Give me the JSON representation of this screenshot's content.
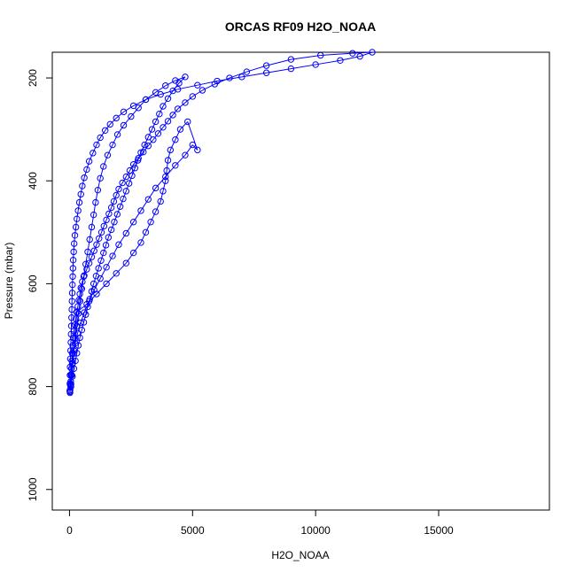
{
  "chart_data": {
    "type": "scatter",
    "title": "ORCAS RF09 H2O_NOAA",
    "xlabel": "H2O_NOAA",
    "ylabel": "Pressure (mbar)",
    "xlim": [
      -700,
      19500
    ],
    "ylim": [
      1040,
      150
    ],
    "y_reversed": true,
    "x_ticks": [
      0,
      5000,
      10000,
      15000
    ],
    "y_ticks": [
      200,
      400,
      600,
      800,
      1000
    ],
    "x_tick_labels": [
      "0",
      "5000",
      "10000",
      "15000"
    ],
    "y_tick_labels": [
      "200",
      "400",
      "600",
      "800",
      "1000"
    ],
    "grid": false,
    "colors": {
      "series": "#0000ff",
      "axis": "#000000",
      "background": "#ffffff"
    },
    "series": [
      {
        "marker": "open-circle",
        "connected": true,
        "points": [
          [
            20,
            812
          ],
          [
            25,
            806
          ],
          [
            35,
            798
          ],
          [
            50,
            790
          ],
          [
            65,
            778
          ],
          [
            80,
            765
          ],
          [
            95,
            750
          ],
          [
            110,
            735
          ],
          [
            130,
            720
          ],
          [
            150,
            705
          ],
          [
            180,
            692
          ],
          [
            220,
            680
          ],
          [
            260,
            668
          ],
          [
            300,
            656
          ],
          [
            340,
            644
          ],
          [
            380,
            632
          ],
          [
            420,
            620
          ],
          [
            460,
            608
          ],
          [
            520,
            596
          ],
          [
            600,
            584
          ],
          [
            700,
            572
          ],
          [
            800,
            560
          ],
          [
            900,
            548
          ],
          [
            1000,
            536
          ],
          [
            1100,
            524
          ],
          [
            1200,
            512
          ],
          [
            1300,
            500
          ],
          [
            1400,
            488
          ],
          [
            1500,
            476
          ],
          [
            1600,
            464
          ],
          [
            1700,
            452
          ],
          [
            1800,
            440
          ],
          [
            1900,
            428
          ],
          [
            2000,
            416
          ],
          [
            2150,
            404
          ],
          [
            2300,
            392
          ],
          [
            2450,
            380
          ],
          [
            2600,
            368
          ],
          [
            2800,
            356
          ],
          [
            3000,
            344
          ],
          [
            3200,
            332
          ],
          [
            3400,
            320
          ],
          [
            3600,
            308
          ],
          [
            3800,
            296
          ],
          [
            4000,
            284
          ],
          [
            4200,
            272
          ],
          [
            4400,
            260
          ],
          [
            4700,
            248
          ],
          [
            5000,
            236
          ],
          [
            5400,
            224
          ],
          [
            5900,
            212
          ],
          [
            6500,
            200
          ],
          [
            7200,
            188
          ],
          [
            8000,
            176
          ],
          [
            9000,
            164
          ],
          [
            10200,
            156
          ],
          [
            11500,
            152
          ],
          [
            12300,
            150
          ],
          [
            11800,
            158
          ],
          [
            11000,
            166
          ],
          [
            10000,
            174
          ],
          [
            9000,
            182
          ],
          [
            8000,
            190
          ],
          [
            7000,
            198
          ],
          [
            6000,
            206
          ],
          [
            5200,
            214
          ],
          [
            4400,
            222
          ],
          [
            3700,
            232
          ],
          [
            3100,
            242
          ],
          [
            2600,
            254
          ],
          [
            2200,
            266
          ],
          [
            1900,
            278
          ],
          [
            1650,
            290
          ],
          [
            1450,
            302
          ],
          [
            1250,
            316
          ],
          [
            1100,
            330
          ],
          [
            950,
            346
          ],
          [
            800,
            362
          ],
          [
            700,
            378
          ],
          [
            600,
            394
          ],
          [
            520,
            410
          ],
          [
            460,
            426
          ],
          [
            400,
            442
          ],
          [
            350,
            458
          ],
          [
            300,
            474
          ],
          [
            260,
            490
          ],
          [
            220,
            506
          ],
          [
            190,
            522
          ],
          [
            170,
            538
          ],
          [
            150,
            554
          ],
          [
            140,
            570
          ],
          [
            130,
            586
          ],
          [
            120,
            602
          ],
          [
            110,
            618
          ],
          [
            100,
            634
          ],
          [
            95,
            650
          ],
          [
            85,
            666
          ],
          [
            75,
            682
          ],
          [
            65,
            698
          ],
          [
            55,
            714
          ],
          [
            45,
            730
          ],
          [
            35,
            746
          ],
          [
            25,
            762
          ],
          [
            20,
            778
          ],
          [
            15,
            794
          ],
          [
            12,
            808
          ],
          [
            60,
            795
          ],
          [
            120,
            780
          ],
          [
            180,
            765
          ],
          [
            240,
            750
          ],
          [
            300,
            735
          ],
          [
            360,
            720
          ],
          [
            420,
            705
          ],
          [
            500,
            690
          ],
          [
            580,
            675
          ],
          [
            660,
            660
          ],
          [
            740,
            645
          ],
          [
            820,
            630
          ],
          [
            900,
            615
          ],
          [
            980,
            600
          ],
          [
            1080,
            585
          ],
          [
            1180,
            570
          ],
          [
            1280,
            555
          ],
          [
            1380,
            540
          ],
          [
            1480,
            525
          ],
          [
            1580,
            510
          ],
          [
            1700,
            495
          ],
          [
            1820,
            480
          ],
          [
            1940,
            465
          ],
          [
            2060,
            450
          ],
          [
            2180,
            435
          ],
          [
            2300,
            420
          ],
          [
            2420,
            405
          ],
          [
            2540,
            390
          ],
          [
            2660,
            375
          ],
          [
            2780,
            360
          ],
          [
            2900,
            345
          ],
          [
            3050,
            330
          ],
          [
            3200,
            315
          ],
          [
            3350,
            300
          ],
          [
            3500,
            285
          ],
          [
            3650,
            270
          ],
          [
            3800,
            255
          ],
          [
            4000,
            240
          ],
          [
            4200,
            225
          ],
          [
            4450,
            210
          ],
          [
            4700,
            198
          ],
          [
            4300,
            205
          ],
          [
            3900,
            215
          ],
          [
            3500,
            228
          ],
          [
            3100,
            242
          ],
          [
            2800,
            258
          ],
          [
            2500,
            275
          ],
          [
            2200,
            292
          ],
          [
            1950,
            310
          ],
          [
            1750,
            330
          ],
          [
            1550,
            350
          ],
          [
            1380,
            372
          ],
          [
            1250,
            395
          ],
          [
            1150,
            418
          ],
          [
            1060,
            442
          ],
          [
            980,
            466
          ],
          [
            900,
            490
          ],
          [
            820,
            514
          ],
          [
            740,
            538
          ],
          [
            660,
            562
          ],
          [
            580,
            586
          ],
          [
            500,
            610
          ],
          [
            430,
            634
          ],
          [
            360,
            658
          ],
          [
            300,
            682
          ],
          [
            240,
            706
          ],
          [
            180,
            730
          ],
          [
            130,
            754
          ],
          [
            90,
            778
          ],
          [
            60,
            800
          ],
          [
            300,
            655
          ],
          [
            700,
            640
          ],
          [
            1100,
            620
          ],
          [
            1500,
            600
          ],
          [
            1900,
            580
          ],
          [
            2300,
            560
          ],
          [
            2600,
            540
          ],
          [
            2900,
            520
          ],
          [
            3100,
            500
          ],
          [
            3300,
            480
          ],
          [
            3500,
            460
          ],
          [
            3700,
            440
          ],
          [
            3800,
            420
          ],
          [
            3900,
            400
          ],
          [
            3950,
            380
          ],
          [
            4000,
            360
          ],
          [
            4100,
            340
          ],
          [
            4300,
            320
          ],
          [
            4500,
            300
          ],
          [
            4800,
            285
          ],
          [
            5200,
            340
          ],
          [
            5000,
            330
          ],
          [
            4700,
            350
          ],
          [
            4300,
            370
          ],
          [
            3900,
            392
          ],
          [
            3500,
            414
          ],
          [
            3200,
            436
          ],
          [
            2900,
            458
          ],
          [
            2600,
            480
          ],
          [
            2300,
            502
          ],
          [
            2000,
            524
          ],
          [
            1750,
            546
          ],
          [
            1500,
            568
          ],
          [
            1250,
            590
          ],
          [
            1000,
            612
          ],
          [
            800,
            634
          ],
          [
            600,
            656
          ],
          [
            450,
            676
          ],
          [
            330,
            696
          ],
          [
            230,
            716
          ],
          [
            160,
            736
          ],
          [
            110,
            756
          ],
          [
            70,
            776
          ],
          [
            40,
            796
          ],
          [
            20,
            810
          ]
        ]
      }
    ]
  }
}
